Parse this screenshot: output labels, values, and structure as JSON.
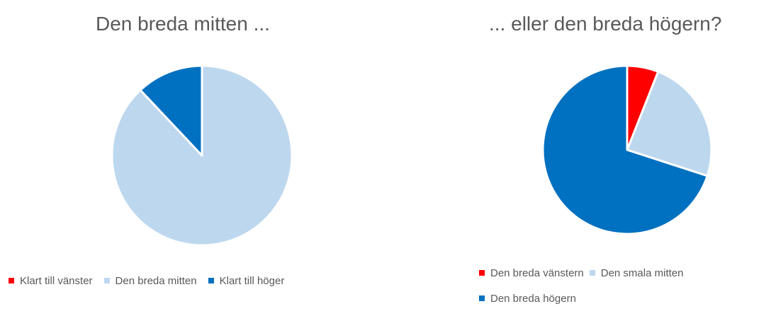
{
  "chart_data": [
    {
      "type": "pie",
      "title": "Den breda mitten ...",
      "categories": [
        "Klart till vänster",
        "Den breda mitten",
        "Klart till höger"
      ],
      "values": [
        0,
        88,
        12
      ],
      "colors": [
        "#ff0000",
        "#bdd7ee",
        "#0070c0"
      ],
      "legend_position": "bottom"
    },
    {
      "type": "pie",
      "title": "... eller den breda högern?",
      "categories": [
        "Den breda vänstern",
        "Den smala mitten",
        "Den breda högern"
      ],
      "values": [
        6,
        24,
        70
      ],
      "colors": [
        "#ff0000",
        "#bdd7ee",
        "#0070c0"
      ],
      "legend_position": "bottom"
    }
  ]
}
